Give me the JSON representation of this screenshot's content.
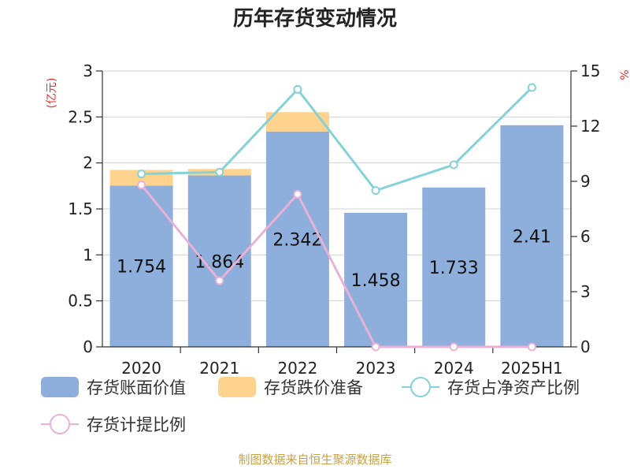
{
  "chart_data": {
    "type": "bar",
    "title": "历年存货变动情况",
    "categories": [
      "2020",
      "2021",
      "2022",
      "2023",
      "2024",
      "2025H1"
    ],
    "left_axis": {
      "unit": "(亿元)",
      "ylim": [
        0,
        3
      ],
      "ticks": [
        "0",
        "0.5",
        "1",
        "1.5",
        "2",
        "2.5",
        "3"
      ]
    },
    "right_axis": {
      "unit": "%",
      "ylim": [
        0,
        15
      ],
      "ticks": [
        "0",
        "3",
        "6",
        "9",
        "12",
        "15"
      ]
    },
    "grid": true,
    "legend_position": "bottom",
    "series": [
      {
        "name": "存货账面价值",
        "type": "bar",
        "stack": "inv",
        "axis": "left",
        "color": "#8eaedb",
        "values": [
          1.754,
          1.864,
          2.342,
          1.458,
          1.733,
          2.41
        ],
        "labels": [
          "1.754",
          "1.864",
          "2.342",
          "1.458",
          "1.733",
          "2.41"
        ]
      },
      {
        "name": "存货跌价准备",
        "type": "bar",
        "stack": "inv",
        "axis": "left",
        "color": "#fdd38e",
        "values": [
          0.17,
          0.07,
          0.21,
          0,
          0,
          0
        ]
      },
      {
        "name": "存货占净资产比例",
        "type": "line",
        "axis": "right",
        "color": "#86d2d6",
        "values": [
          9.4,
          9.5,
          14.0,
          8.5,
          9.9,
          14.1
        ]
      },
      {
        "name": "存货计提比例",
        "type": "line",
        "axis": "right",
        "color": "#e8b2d6",
        "values": [
          8.8,
          3.6,
          8.3,
          0,
          0,
          0
        ]
      }
    ]
  },
  "footer": {
    "source": "制图数据来自恒生聚源数据库"
  }
}
